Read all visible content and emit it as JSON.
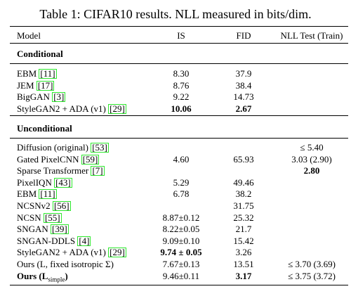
{
  "caption": "Table 1: CIFAR10 results. NLL measured in bits/dim.",
  "table": {
    "header": [
      "Model",
      "IS",
      "FID",
      "NLL Test (Train)"
    ],
    "sections": [
      {
        "title": "Conditional",
        "rows": [
          {
            "model": "EBM",
            "cite": "[11]",
            "is": "8.30",
            "fid": "37.9",
            "nll": ""
          },
          {
            "model": "JEM",
            "cite": "[17]",
            "is": "8.76",
            "fid": "38.4",
            "nll": ""
          },
          {
            "model": "BigGAN",
            "cite": "[3]",
            "is": "9.22",
            "fid": "14.73",
            "nll": ""
          },
          {
            "model": "StyleGAN2 + ADA (v1)",
            "cite": "[29]",
            "is": "10.06",
            "fid": "2.67",
            "nll": "",
            "bold": [
              "is",
              "fid"
            ]
          }
        ]
      },
      {
        "title": "Unconditional",
        "rows": [
          {
            "model": "Diffusion (original)",
            "cite": "[53]",
            "is": "",
            "fid": "",
            "nll": "≤ 5.40"
          },
          {
            "model": "Gated PixelCNN",
            "cite": "[59]",
            "is": "4.60",
            "fid": "65.93",
            "nll": "3.03 (2.90)"
          },
          {
            "model": "Sparse Transformer",
            "cite": "[7]",
            "is": "",
            "fid": "",
            "nll": "2.80",
            "bold": [
              "nll"
            ]
          },
          {
            "model": "PixelIQN",
            "cite": "[43]",
            "is": "5.29",
            "fid": "49.46",
            "nll": ""
          },
          {
            "model": "EBM",
            "cite": "[11]",
            "is": "6.78",
            "fid": "38.2",
            "nll": ""
          },
          {
            "model": "NCSNv2",
            "cite": "[56]",
            "is": "",
            "fid": "31.75",
            "nll": ""
          },
          {
            "model": "NCSN",
            "cite": "[55]",
            "is": "8.87±0.12",
            "fid": "25.32",
            "nll": ""
          },
          {
            "model": "SNGAN",
            "cite": "[39]",
            "is": "8.22±0.05",
            "fid": "21.7",
            "nll": ""
          },
          {
            "model": "SNGAN-DDLS",
            "cite": "[4]",
            "is": "9.09±0.10",
            "fid": "15.42",
            "nll": ""
          },
          {
            "model": "StyleGAN2 + ADA (v1)",
            "cite": "[29]",
            "is": "9.74 ± 0.05",
            "fid": "3.26",
            "nll": "",
            "bold": [
              "is"
            ]
          },
          {
            "model": "Ours (L, fixed isotropic Σ)",
            "is": "7.67±0.13",
            "fid": "13.51",
            "nll": "≤ 3.70 (3.69)"
          },
          {
            "model": "Ours (L",
            "sub": "simple",
            "tail": ")",
            "is": "9.46±0.11",
            "fid": "3.17",
            "nll": "≤ 3.75 (3.72)",
            "bold": [
              "model",
              "fid"
            ]
          }
        ]
      }
    ]
  }
}
